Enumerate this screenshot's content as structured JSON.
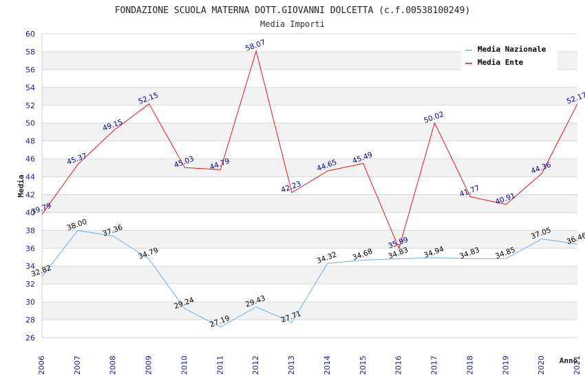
{
  "chart_data": {
    "type": "line",
    "title": "FONDAZIONE SCUOLA MATERNA DOTT.GIOVANNI DOLCETTA (c.f.00538100249)",
    "subtitle": "Media Importi",
    "xlabel": "Anno",
    "ylabel": "Media",
    "ylim": [
      26,
      60
    ],
    "ytick_step": 2,
    "categories": [
      "2006",
      "2007",
      "2008",
      "2009",
      "2010",
      "2011",
      "2012",
      "2013",
      "2014",
      "2015",
      "2016",
      "2017",
      "2018",
      "2019",
      "2020",
      "2021"
    ],
    "series": [
      {
        "name": "Media Nazionale",
        "color": "#6ab0e8",
        "values": [
          32.82,
          38.0,
          37.36,
          34.79,
          29.24,
          27.19,
          29.43,
          27.71,
          34.32,
          34.68,
          34.83,
          34.94,
          34.83,
          34.85,
          37.05,
          36.46
        ],
        "labels": [
          "32.82",
          "38.00",
          "37.36",
          "34.79",
          "29.24",
          "27.19",
          "29.43",
          "27.71",
          "34.32",
          "34.68",
          "34.83",
          "34.94",
          "34.83",
          "34.85",
          "37.05",
          "36.46"
        ]
      },
      {
        "name": "Media Ente",
        "color": "#e8141e",
        "values": [
          39.79,
          45.37,
          49.15,
          52.15,
          45.03,
          44.79,
          58.07,
          42.23,
          44.65,
          45.49,
          35.99,
          50.02,
          41.77,
          40.91,
          44.36,
          52.17
        ],
        "labels": [
          "39.79",
          "45.37",
          "49.15",
          "52.15",
          "45.03",
          "44.79",
          "58.07",
          "42.23",
          "44.65",
          "45.49",
          "35.99",
          "50.02",
          "41.77",
          "40.91",
          "44.36",
          "52.17"
        ]
      }
    ],
    "legend": "top-right",
    "grid": true
  }
}
